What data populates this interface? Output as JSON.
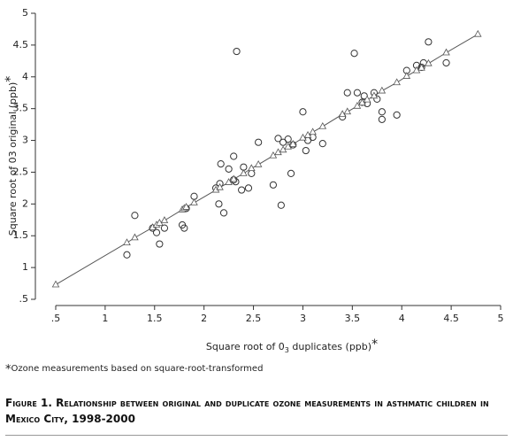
{
  "chart_data": {
    "type": "scatter",
    "xlabel": {
      "before": "Square root of 0",
      "sub": "3",
      "after": " duplicates (ppb)",
      "star": "*"
    },
    "ylabel": {
      "text": "Square root of 03 original (ppb)",
      "star": "*"
    },
    "footnote": {
      "star": "*",
      "text": "Ozone measurements based on square-root-transformed"
    },
    "caption": "Figure 1. Relationship between original and duplicate ozone measurements in asthmatic children in Mexico City, 1998-2000",
    "xlim": [
      0.5,
      5
    ],
    "ylim": [
      0.5,
      5
    ],
    "xticks": [
      {
        "value": 0.5,
        "label": ".5"
      },
      1,
      1.5,
      2,
      2.5,
      3,
      3.5,
      4,
      4.5,
      5
    ],
    "yticks": [
      {
        "value": 0.5,
        "label": ".5"
      },
      1,
      1.5,
      2,
      2.5,
      3,
      3.5,
      4,
      4.5,
      5
    ],
    "series": [
      {
        "marker": "circle",
        "color": "#333333",
        "line": false,
        "x": [
          1.22,
          1.3,
          1.48,
          1.52,
          1.55,
          1.6,
          1.78,
          1.8,
          1.82,
          1.9,
          2.12,
          2.15,
          2.16,
          2.17,
          2.2,
          2.25,
          2.3,
          2.3,
          2.32,
          2.33,
          2.38,
          2.4,
          2.45,
          2.48,
          2.55,
          2.7,
          2.75,
          2.78,
          2.8,
          2.85,
          2.88,
          2.9,
          3.0,
          3.03,
          3.05,
          3.1,
          3.2,
          3.4,
          3.45,
          3.52,
          3.55,
          3.6,
          3.62,
          3.65,
          3.72,
          3.75,
          3.8,
          3.8,
          3.95,
          4.05,
          4.15,
          4.2,
          4.22,
          4.27,
          4.45
        ],
        "values": [
          1.2,
          1.82,
          1.62,
          1.55,
          1.37,
          1.62,
          1.67,
          1.62,
          1.93,
          2.12,
          2.25,
          2.0,
          2.32,
          2.63,
          1.86,
          2.55,
          2.75,
          2.38,
          2.35,
          4.4,
          2.22,
          2.58,
          2.25,
          2.48,
          2.97,
          2.3,
          3.03,
          1.98,
          2.97,
          3.02,
          2.48,
          2.93,
          3.45,
          2.84,
          3.0,
          3.05,
          2.95,
          3.37,
          3.75,
          4.37,
          3.75,
          3.6,
          3.7,
          3.58,
          3.75,
          3.65,
          3.45,
          3.33,
          3.4,
          4.1,
          4.18,
          4.15,
          4.22,
          4.55,
          4.22
        ]
      },
      {
        "marker": "triangle",
        "color": "#555555",
        "line": true,
        "x": [
          0.5,
          1.22,
          1.3,
          1.48,
          1.52,
          1.55,
          1.6,
          1.78,
          1.8,
          1.82,
          1.9,
          2.12,
          2.16,
          2.25,
          2.3,
          2.4,
          2.48,
          2.55,
          2.7,
          2.75,
          2.8,
          2.85,
          2.9,
          3.0,
          3.05,
          3.1,
          3.2,
          3.4,
          3.45,
          3.55,
          3.6,
          3.65,
          3.72,
          3.8,
          3.95,
          4.05,
          4.15,
          4.2,
          4.27,
          4.45,
          4.77
        ],
        "values": [
          0.73,
          1.39,
          1.47,
          1.63,
          1.67,
          1.7,
          1.74,
          1.91,
          1.93,
          1.95,
          2.02,
          2.22,
          2.26,
          2.34,
          2.39,
          2.48,
          2.56,
          2.62,
          2.76,
          2.81,
          2.85,
          2.9,
          2.94,
          3.04,
          3.08,
          3.13,
          3.22,
          3.41,
          3.45,
          3.54,
          3.59,
          3.64,
          3.7,
          3.78,
          3.91,
          4.01,
          4.1,
          4.14,
          4.21,
          4.38,
          4.67
        ]
      }
    ]
  }
}
